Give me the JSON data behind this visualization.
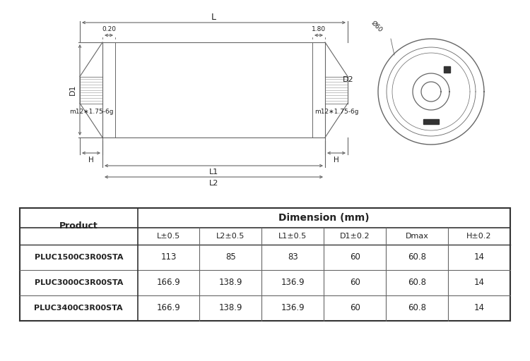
{
  "table_header_main": "Dimension (mm)",
  "table_col_product": "Product",
  "table_subheaders": [
    "L±0.5",
    "L2±0.5",
    "L1±0.5",
    "D1±0.2",
    "Dmax",
    "H±0.2"
  ],
  "table_rows": [
    [
      "PLUC1500C3R00STA",
      "113",
      "85",
      "83",
      "60",
      "60.8",
      "14"
    ],
    [
      "PLUC3000C3R00STA",
      "166.9",
      "138.9",
      "136.9",
      "60",
      "60.8",
      "14"
    ],
    [
      "PLUC3400C3R00STA",
      "166.9",
      "138.9",
      "136.9",
      "60",
      "60.8",
      "14"
    ]
  ],
  "line_color": "#666666",
  "table_border_color": "#333333",
  "bg_color": "#ffffff",
  "text_color": "#222222",
  "dmax_annotation": "Ø60",
  "thread_label": "m12∗1.75-6g"
}
